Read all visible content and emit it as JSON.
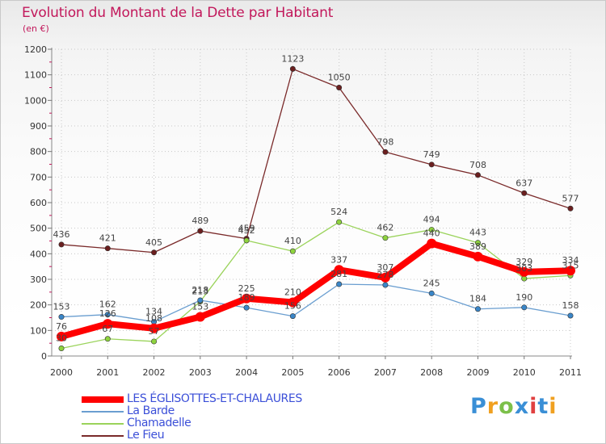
{
  "header": {
    "title": "Evolution du Montant de la Dette par Habitant",
    "subtitle": "(en €)"
  },
  "brand": {
    "logo_text": "Proxiti"
  },
  "chart_data": {
    "type": "line",
    "title": "Evolution du Montant de la Dette par Habitant",
    "ylabel": "(en €)",
    "xlabel": "",
    "x": [
      2000,
      2001,
      2002,
      2003,
      2004,
      2005,
      2006,
      2007,
      2008,
      2009,
      2010,
      2011
    ],
    "ylim": [
      0,
      1200
    ],
    "yticks": [
      0,
      100,
      200,
      300,
      400,
      500,
      600,
      700,
      800,
      900,
      1000,
      1100,
      1200
    ],
    "grid": true,
    "legend": "bottom-left",
    "series": [
      {
        "name": "Le Fieu",
        "color": "#7a2a2a",
        "marker": "#6b1f1f",
        "values": [
          436,
          421,
          405,
          489,
          459,
          1123,
          1050,
          798,
          749,
          708,
          637,
          577
        ]
      },
      {
        "name": "Chamadelle",
        "color": "#9ad35a",
        "marker": "#8ed33e",
        "values": [
          30,
          67,
          57,
          213,
          452,
          410,
          524,
          462,
          494,
          443,
          303,
          315
        ]
      },
      {
        "name": "La Barde",
        "color": "#6a9ed0",
        "marker": "#3a86c8",
        "values": [
          153,
          162,
          134,
          218,
          189,
          156,
          281,
          278,
          245,
          184,
          190,
          158
        ]
      },
      {
        "name": "LES ÉGLISOTTES-ET-CHALAURES",
        "color": "#ff0000",
        "marker": "#ff0000",
        "values": [
          76,
          126,
          108,
          153,
          225,
          210,
          337,
          307,
          440,
          389,
          329,
          334
        ]
      }
    ],
    "legend_order": [
      "LES ÉGLISOTTES-ET-CHALAURES",
      "La Barde",
      "Chamadelle",
      "Le Fieu"
    ]
  }
}
